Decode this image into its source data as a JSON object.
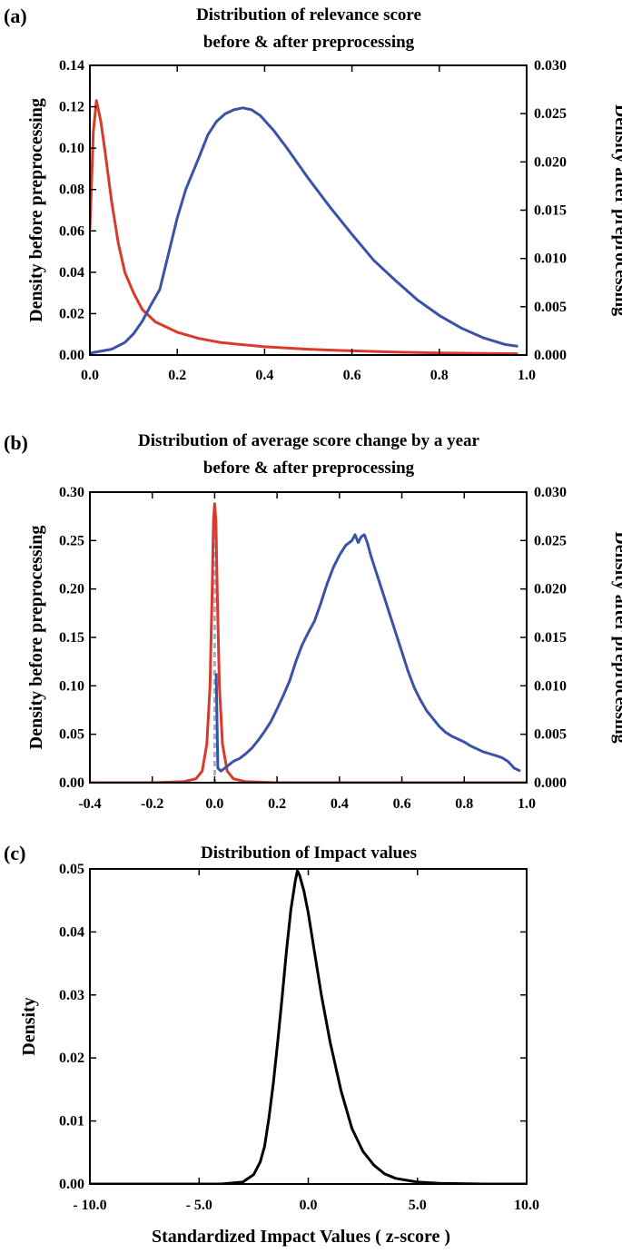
{
  "chart_data": [
    {
      "panel_label": "(a)",
      "type": "line",
      "title_lines": [
        "Distribution of relevance score",
        "before & after preprocessing"
      ],
      "ylabel_left": "Density before preprocessing",
      "ylabel_right": "Density after preprocessing",
      "xlim": [
        0.0,
        1.0
      ],
      "ylim_left": [
        0.0,
        0.14
      ],
      "ylim_right": [
        0.0,
        0.03
      ],
      "xticks": [
        0.0,
        0.2,
        0.4,
        0.6,
        0.8,
        1.0
      ],
      "xtick_labels": [
        "0.0",
        "0.2",
        "0.4",
        "0.6",
        "0.8",
        "1.0"
      ],
      "yticks_left": [
        0.0,
        0.02,
        0.04,
        0.06,
        0.08,
        0.1,
        0.12,
        0.14
      ],
      "ytick_labels_left": [
        "0.00",
        "0.02",
        "0.04",
        "0.06",
        "0.08",
        "0.10",
        "0.12",
        "0.14"
      ],
      "yticks_right": [
        0.0,
        0.005,
        0.01,
        0.015,
        0.02,
        0.025,
        0.03
      ],
      "ytick_labels_right": [
        "0.000",
        "0.005",
        "0.010",
        "0.015",
        "0.020",
        "0.025",
        "0.030"
      ],
      "series": [
        {
          "color": "#d93a2b",
          "axis": "left",
          "x": [
            0.0,
            0.008,
            0.015,
            0.025,
            0.035,
            0.05,
            0.065,
            0.08,
            0.1,
            0.12,
            0.15,
            0.2,
            0.25,
            0.3,
            0.4,
            0.5,
            0.6,
            0.7,
            0.8,
            0.9,
            0.98
          ],
          "y": [
            0.061,
            0.108,
            0.123,
            0.113,
            0.098,
            0.074,
            0.054,
            0.04,
            0.03,
            0.022,
            0.016,
            0.011,
            0.008,
            0.006,
            0.004,
            0.0028,
            0.002,
            0.0014,
            0.001,
            0.0008,
            0.0006
          ]
        },
        {
          "color": "#3a52a8",
          "axis": "right",
          "x": [
            0.0,
            0.05,
            0.08,
            0.1,
            0.12,
            0.14,
            0.16,
            0.18,
            0.2,
            0.22,
            0.25,
            0.27,
            0.29,
            0.31,
            0.33,
            0.35,
            0.37,
            0.39,
            0.42,
            0.45,
            0.5,
            0.55,
            0.6,
            0.65,
            0.7,
            0.75,
            0.8,
            0.85,
            0.9,
            0.95,
            0.98
          ],
          "y": [
            0.0002,
            0.0006,
            0.0013,
            0.0022,
            0.0035,
            0.0052,
            0.0068,
            0.0105,
            0.0142,
            0.0172,
            0.0205,
            0.0228,
            0.0242,
            0.025,
            0.0254,
            0.0256,
            0.0254,
            0.0248,
            0.0233,
            0.0215,
            0.0183,
            0.0153,
            0.0125,
            0.0098,
            0.0077,
            0.0057,
            0.0041,
            0.0028,
            0.0018,
            0.0011,
            0.0009
          ]
        }
      ]
    },
    {
      "panel_label": "(b)",
      "type": "line",
      "title_lines": [
        "Distribution of average score change by a year",
        "before & after preprocessing"
      ],
      "ylabel_left": "Density before preprocessing",
      "ylabel_right": "Density after preprocessing",
      "xlim": [
        -0.4,
        1.0
      ],
      "ylim_left": [
        0.0,
        0.3
      ],
      "ylim_right": [
        0.0,
        0.03
      ],
      "xticks": [
        -0.4,
        -0.2,
        0.0,
        0.2,
        0.4,
        0.6,
        0.8,
        1.0
      ],
      "xtick_labels": [
        "-0.4",
        "-0.2",
        "0.0",
        "0.2",
        "0.4",
        "0.6",
        "0.8",
        "1.0"
      ],
      "yticks_left": [
        0.0,
        0.05,
        0.1,
        0.15,
        0.2,
        0.25,
        0.3
      ],
      "ytick_labels_left": [
        "0.00",
        "0.05",
        "0.10",
        "0.15",
        "0.20",
        "0.25",
        "0.30"
      ],
      "yticks_right": [
        0.0,
        0.005,
        0.01,
        0.015,
        0.02,
        0.025,
        0.03
      ],
      "ytick_labels_right": [
        "0.000",
        "0.005",
        "0.010",
        "0.015",
        "0.020",
        "0.025",
        "0.030"
      ],
      "vline_x": 0.0,
      "series": [
        {
          "color": "#d93a2b",
          "axis": "left",
          "x": [
            -0.4,
            -0.2,
            -0.1,
            -0.06,
            -0.04,
            -0.025,
            -0.015,
            -0.008,
            -0.004,
            0.0,
            0.004,
            0.008,
            0.015,
            0.025,
            0.04,
            0.06,
            0.1,
            0.2,
            1.0
          ],
          "y": [
            0.0,
            0.0,
            0.001,
            0.004,
            0.012,
            0.04,
            0.1,
            0.2,
            0.27,
            0.288,
            0.27,
            0.2,
            0.1,
            0.04,
            0.012,
            0.004,
            0.001,
            0.0,
            0.0
          ]
        },
        {
          "color": "#3a52a8",
          "axis": "right",
          "x": [
            0.005,
            0.01,
            0.02,
            0.04,
            0.06,
            0.08,
            0.1,
            0.12,
            0.14,
            0.16,
            0.18,
            0.2,
            0.22,
            0.24,
            0.26,
            0.28,
            0.3,
            0.32,
            0.34,
            0.36,
            0.38,
            0.4,
            0.42,
            0.44,
            0.45,
            0.46,
            0.47,
            0.48,
            0.49,
            0.5,
            0.52,
            0.54,
            0.56,
            0.58,
            0.6,
            0.62,
            0.64,
            0.66,
            0.68,
            0.7,
            0.72,
            0.74,
            0.76,
            0.78,
            0.8,
            0.82,
            0.84,
            0.86,
            0.88,
            0.9,
            0.92,
            0.94,
            0.96,
            0.98
          ],
          "y": [
            0.0113,
            0.0015,
            0.0012,
            0.0017,
            0.0022,
            0.0025,
            0.003,
            0.0036,
            0.0044,
            0.0053,
            0.0063,
            0.0076,
            0.009,
            0.0105,
            0.0125,
            0.0142,
            0.0155,
            0.0167,
            0.0185,
            0.0205,
            0.0222,
            0.0235,
            0.0245,
            0.025,
            0.0256,
            0.0248,
            0.0254,
            0.0256,
            0.0247,
            0.0235,
            0.0215,
            0.0195,
            0.0175,
            0.0155,
            0.0135,
            0.0115,
            0.0098,
            0.0085,
            0.0074,
            0.0066,
            0.0058,
            0.0052,
            0.0048,
            0.0045,
            0.0042,
            0.0038,
            0.0035,
            0.0032,
            0.003,
            0.0028,
            0.0026,
            0.0022,
            0.0015,
            0.0012
          ]
        }
      ]
    },
    {
      "panel_label": "(c)",
      "type": "line",
      "title_lines": [
        "Distribution of Impact values"
      ],
      "xlabel": "Standardized Impact Values ( z-score )",
      "ylabel_left": "Density",
      "xlim": [
        -10.0,
        10.0
      ],
      "ylim_left": [
        0.0,
        0.05
      ],
      "xticks": [
        -10.0,
        -5.0,
        0.0,
        5.0,
        10.0
      ],
      "xtick_labels": [
        "- 10.0",
        "- 5.0",
        "0.0",
        "5.0",
        "10.0"
      ],
      "yticks_left": [
        0.0,
        0.01,
        0.02,
        0.03,
        0.04,
        0.05
      ],
      "ytick_labels_left": [
        "0.00",
        "0.01",
        "0.02",
        "0.03",
        "0.04",
        "0.05"
      ],
      "series": [
        {
          "color": "#000000",
          "axis": "left",
          "x": [
            -10.0,
            -4.0,
            -3.0,
            -2.5,
            -2.2,
            -2.0,
            -1.8,
            -1.6,
            -1.4,
            -1.2,
            -1.0,
            -0.8,
            -0.6,
            -0.5,
            -0.4,
            -0.2,
            0.0,
            0.3,
            0.6,
            1.0,
            1.5,
            2.0,
            2.5,
            3.0,
            3.5,
            4.0,
            5.0,
            6.0,
            8.0,
            10.0
          ],
          "y": [
            0.0,
            0.0,
            0.0003,
            0.0015,
            0.0035,
            0.006,
            0.0105,
            0.016,
            0.0225,
            0.0295,
            0.037,
            0.0435,
            0.048,
            0.0497,
            0.049,
            0.0465,
            0.043,
            0.0365,
            0.03,
            0.0225,
            0.0148,
            0.0088,
            0.0052,
            0.003,
            0.0016,
            0.0009,
            0.0003,
            0.0001,
            0.0,
            0.0
          ]
        }
      ]
    }
  ]
}
